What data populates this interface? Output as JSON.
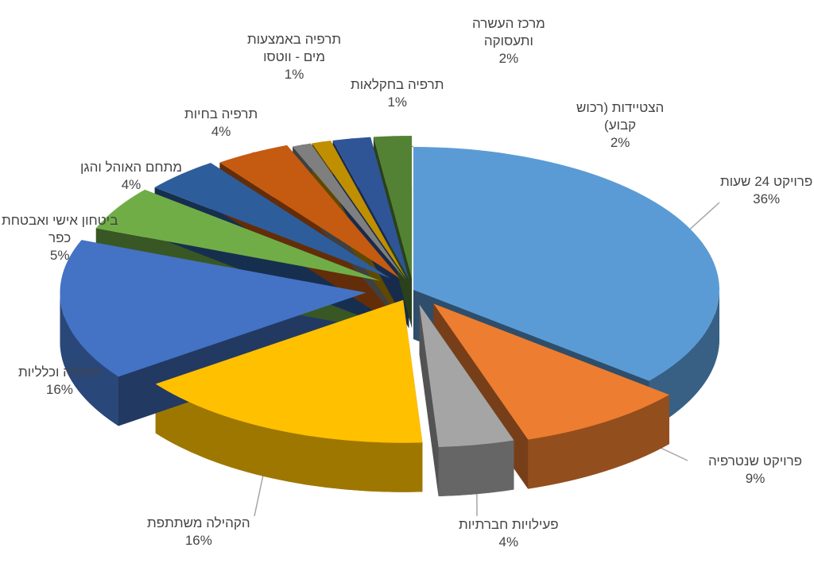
{
  "chart_data": {
    "type": "pie",
    "title": "",
    "categories": [
      "פרויקט 24 שעות",
      "פרויקט שנטרפיה",
      "פעילויות חברתיות",
      "הקהילה משתתפת",
      "הנהלה וכלליות",
      "ביטחון אישי ואבטחת כפר",
      "מתחם האוהל והגן",
      "תרפיה בחיות",
      "תרפיה באמצעות מים - ווטסו",
      "תרפיה בחקלאות",
      "מרכז העשרה ותעסוקה",
      "הצטיידות (רכוש קבוע)"
    ],
    "values": [
      36,
      9,
      4,
      16,
      16,
      5,
      4,
      4,
      1,
      1,
      2,
      2
    ],
    "value_labels": [
      "36%",
      "9%",
      "4%",
      "16%",
      "16%",
      "5%",
      "4%",
      "4%",
      "1%",
      "1%",
      "2%",
      "2%"
    ],
    "colors": [
      "#5b9bd5",
      "#ed7d31",
      "#a5a5a5",
      "#ffc000",
      "#4472c4",
      "#70ad47",
      "#2e5d9c",
      "#c55a11",
      "#7f7f7f",
      "#bf8f00",
      "#2f5597",
      "#548235"
    ],
    "exploded": true,
    "three_d": true,
    "legend": "none",
    "data_labels": "outside, category name and percent"
  },
  "labels": [
    {
      "name_lines": [
        "פרויקט 24 שעות"
      ],
      "pct": "36%"
    },
    {
      "name_lines": [
        "פרויקט שנטרפיה"
      ],
      "pct": "9%"
    },
    {
      "name_lines": [
        "פעילויות חברתיות"
      ],
      "pct": "4%"
    },
    {
      "name_lines": [
        "הקהילה משתתפת"
      ],
      "pct": "16%"
    },
    {
      "name_lines": [
        "הנהלה וכלליות"
      ],
      "pct": "16%"
    },
    {
      "name_lines": [
        "ביטחון אישי ואבטחת",
        "כפר"
      ],
      "pct": "5%"
    },
    {
      "name_lines": [
        "מתחם האוהל והגן"
      ],
      "pct": "4%"
    },
    {
      "name_lines": [
        "תרפיה בחיות"
      ],
      "pct": "4%"
    },
    {
      "name_lines": [
        "תרפיה באמצעות",
        "מים - ווטסו"
      ],
      "pct": "1%"
    },
    {
      "name_lines": [
        "תרפיה בחקלאות"
      ],
      "pct": "1%"
    },
    {
      "name_lines": [
        "מרכז העשרה",
        "ותעסוקה"
      ],
      "pct": "2%"
    },
    {
      "name_lines": [
        "הצטיידות (רכוש",
        "קבוע)"
      ],
      "pct": "2%"
    }
  ]
}
